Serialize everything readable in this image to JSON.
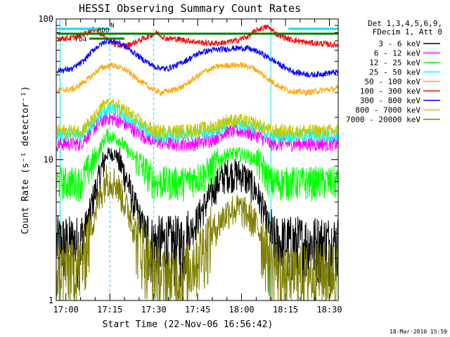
{
  "chart_data": {
    "type": "line",
    "title": "HESSI Observing Summary Count Rates",
    "xlabel": "Start Time (22-Nov-06 16:56:42)",
    "ylabel": "Count Rate (s⁻¹ detector⁻¹)",
    "yscale": "log",
    "ylim": [
      1,
      100
    ],
    "xlim": [
      "16:56:42",
      "18:33:00"
    ],
    "x_ticks": [
      "17:00",
      "17:15",
      "17:30",
      "17:45",
      "18:00",
      "18:15",
      "18:30"
    ],
    "y_ticks": [
      "1",
      "10",
      "100"
    ],
    "timestamp": "18-Mar-2010 15:59",
    "legend_header": [
      "Det 1,3,4,5,6,9,",
      "FDecim 1, Att 0"
    ],
    "flags": [
      {
        "label": "N",
        "color": "#00e5ee",
        "intervals": [
          [
            "16:57",
            "17:15"
          ],
          [
            "18:16",
            "18:33"
          ]
        ]
      },
      {
        "label": "RDO",
        "color": "#008000",
        "intervals": [
          [
            "16:57",
            "17:34"
          ],
          [
            "17:34",
            "17:55"
          ],
          [
            "17:55",
            "18:12"
          ],
          [
            "18:12",
            "18:33"
          ]
        ]
      },
      {
        "label": "FD4",
        "color": "#008000",
        "intervals": [
          [
            "17:08",
            "17:20"
          ]
        ]
      }
    ],
    "vlines": [
      {
        "time": "16:58",
        "color": "#00e5ee",
        "style": "solid"
      },
      {
        "time": "17:15",
        "color": "#00e5ee",
        "style": "dashed"
      },
      {
        "time": "17:30",
        "color": "#00e5ee",
        "style": "dashed"
      },
      {
        "time": "18:10",
        "color": "#00e5ee",
        "style": "solid"
      },
      {
        "time": "18:33",
        "color": "#00e5ee",
        "style": "dashed"
      }
    ],
    "series": [
      {
        "name": "3 - 6 keV",
        "color": "#000000",
        "points": [
          [
            "16:57",
            2.6
          ],
          [
            "17:05",
            2.6
          ],
          [
            "17:08",
            4
          ],
          [
            "17:11",
            7
          ],
          [
            "17:14",
            11
          ],
          [
            "17:17",
            11
          ],
          [
            "17:20",
            8
          ],
          [
            "17:23",
            5
          ],
          [
            "17:26",
            3.5
          ],
          [
            "17:29",
            2.6
          ],
          [
            "17:34",
            2.6
          ],
          [
            "17:40",
            2.6
          ],
          [
            "17:44",
            3.5
          ],
          [
            "17:48",
            5
          ],
          [
            "17:52",
            7
          ],
          [
            "17:55",
            8
          ],
          [
            "18:00",
            8
          ],
          [
            "18:05",
            6
          ],
          [
            "18:08",
            4
          ],
          [
            "18:11",
            2.6
          ],
          [
            "18:20",
            2.6
          ],
          [
            "18:33",
            2.6
          ]
        ]
      },
      {
        "name": "6 - 12 keV",
        "color": "#ff00ff",
        "points": [
          [
            "16:57",
            13
          ],
          [
            "17:05",
            13
          ],
          [
            "17:10",
            17
          ],
          [
            "17:14",
            20
          ],
          [
            "17:18",
            19
          ],
          [
            "17:22",
            17
          ],
          [
            "17:26",
            15
          ],
          [
            "17:30",
            13.5
          ],
          [
            "17:36",
            13
          ],
          [
            "17:44",
            13
          ],
          [
            "17:50",
            14
          ],
          [
            "17:55",
            16
          ],
          [
            "18:00",
            16
          ],
          [
            "18:05",
            15
          ],
          [
            "18:10",
            13
          ],
          [
            "18:20",
            13
          ],
          [
            "18:33",
            13
          ]
        ]
      },
      {
        "name": "12 - 25 keV",
        "color": "#00ff00",
        "points": [
          [
            "16:57",
            7
          ],
          [
            "17:05",
            7
          ],
          [
            "17:10",
            10
          ],
          [
            "17:14",
            15
          ],
          [
            "17:18",
            14
          ],
          [
            "17:22",
            11
          ],
          [
            "17:26",
            9
          ],
          [
            "17:30",
            7
          ],
          [
            "17:40",
            7
          ],
          [
            "17:48",
            8
          ],
          [
            "17:55",
            11
          ],
          [
            "18:00",
            11
          ],
          [
            "18:05",
            10
          ],
          [
            "18:10",
            7
          ],
          [
            "18:20",
            7
          ],
          [
            "18:33",
            7
          ]
        ]
      },
      {
        "name": "25 - 50 keV",
        "color": "#00ffff",
        "points": [
          [
            "16:57",
            15
          ],
          [
            "17:05",
            15
          ],
          [
            "17:10",
            19
          ],
          [
            "17:14",
            23
          ],
          [
            "17:18",
            22
          ],
          [
            "17:22",
            19
          ],
          [
            "17:26",
            17
          ],
          [
            "17:30",
            15
          ],
          [
            "17:40",
            15
          ],
          [
            "17:50",
            16
          ],
          [
            "17:55",
            18
          ],
          [
            "18:00",
            18
          ],
          [
            "18:05",
            17
          ],
          [
            "18:10",
            15
          ],
          [
            "18:20",
            15
          ],
          [
            "18:33",
            15
          ]
        ]
      },
      {
        "name": "50 - 100 keV",
        "color": "#ffa500",
        "points": [
          [
            "16:57",
            31
          ],
          [
            "17:03",
            32
          ],
          [
            "17:08",
            38
          ],
          [
            "17:12",
            45
          ],
          [
            "17:16",
            47
          ],
          [
            "17:20",
            44
          ],
          [
            "17:24",
            38
          ],
          [
            "17:28",
            33
          ],
          [
            "17:32",
            30
          ],
          [
            "17:36",
            31
          ],
          [
            "17:40",
            33
          ],
          [
            "17:44",
            38
          ],
          [
            "17:48",
            43
          ],
          [
            "17:52",
            46
          ],
          [
            "17:56",
            47
          ],
          [
            "18:00",
            47
          ],
          [
            "18:04",
            45
          ],
          [
            "18:08",
            39
          ],
          [
            "18:12",
            34
          ],
          [
            "18:16",
            31
          ],
          [
            "18:22",
            30
          ],
          [
            "18:27",
            31
          ],
          [
            "18:33",
            32
          ]
        ]
      },
      {
        "name": "100 - 300 keV",
        "color": "#ff0000",
        "points": [
          [
            "16:57",
            73
          ],
          [
            "17:02",
            73
          ],
          [
            "17:06",
            78
          ],
          [
            "17:10",
            85
          ],
          [
            "17:13",
            75
          ],
          [
            "17:17",
            65
          ],
          [
            "17:21",
            65
          ],
          [
            "17:25",
            70
          ],
          [
            "17:28",
            75
          ],
          [
            "17:31",
            80
          ],
          [
            "17:34",
            73
          ],
          [
            "17:38",
            72
          ],
          [
            "17:42",
            70
          ],
          [
            "17:46",
            68
          ],
          [
            "17:50",
            67
          ],
          [
            "17:54",
            68
          ],
          [
            "17:58",
            70
          ],
          [
            "18:02",
            75
          ],
          [
            "18:06",
            85
          ],
          [
            "18:09",
            88
          ],
          [
            "18:12",
            78
          ],
          [
            "18:16",
            72
          ],
          [
            "18:22",
            68
          ],
          [
            "18:27",
            67
          ],
          [
            "18:33",
            65
          ]
        ]
      },
      {
        "name": "300 - 800 keV",
        "color": "#0000ff",
        "points": [
          [
            "16:57",
            43
          ],
          [
            "17:02",
            44
          ],
          [
            "17:06",
            50
          ],
          [
            "17:10",
            62
          ],
          [
            "17:14",
            70
          ],
          [
            "17:18",
            68
          ],
          [
            "17:22",
            60
          ],
          [
            "17:26",
            52
          ],
          [
            "17:30",
            46
          ],
          [
            "17:34",
            44
          ],
          [
            "17:38",
            47
          ],
          [
            "17:42",
            52
          ],
          [
            "17:46",
            58
          ],
          [
            "17:50",
            60
          ],
          [
            "17:54",
            61
          ],
          [
            "17:58",
            62
          ],
          [
            "18:02",
            62
          ],
          [
            "18:06",
            58
          ],
          [
            "18:10",
            52
          ],
          [
            "18:14",
            46
          ],
          [
            "18:18",
            42
          ],
          [
            "18:24",
            40
          ],
          [
            "18:28",
            41
          ],
          [
            "18:33",
            42
          ]
        ]
      },
      {
        "name": "800 - 7000 keV",
        "color": "#c8c800",
        "points": [
          [
            "16:57",
            16
          ],
          [
            "17:05",
            16
          ],
          [
            "17:10",
            20
          ],
          [
            "17:14",
            26
          ],
          [
            "17:18",
            24
          ],
          [
            "17:22",
            21
          ],
          [
            "17:26",
            18
          ],
          [
            "17:30",
            16
          ],
          [
            "17:40",
            16
          ],
          [
            "17:50",
            17
          ],
          [
            "17:55",
            19
          ],
          [
            "18:00",
            19
          ],
          [
            "18:05",
            18
          ],
          [
            "18:10",
            16
          ],
          [
            "18:20",
            16
          ],
          [
            "18:33",
            16
          ]
        ]
      },
      {
        "name": "7000 - 20000 keV",
        "color": "#808000",
        "points": [
          [
            "16:57",
            1.7
          ],
          [
            "17:05",
            1.8
          ],
          [
            "17:08",
            3
          ],
          [
            "17:11",
            5
          ],
          [
            "17:14",
            7.5
          ],
          [
            "17:17",
            7
          ],
          [
            "17:20",
            5
          ],
          [
            "17:24",
            3
          ],
          [
            "17:28",
            2
          ],
          [
            "17:32",
            1.5
          ],
          [
            "17:40",
            1.5
          ],
          [
            "17:46",
            2.3
          ],
          [
            "17:52",
            3.5
          ],
          [
            "17:56",
            4.5
          ],
          [
            "18:00",
            4.5
          ],
          [
            "18:05",
            3.5
          ],
          [
            "18:09",
            2.2
          ],
          [
            "18:14",
            1.5
          ],
          [
            "18:20",
            1.6
          ],
          [
            "18:33",
            1.7
          ]
        ]
      }
    ]
  }
}
